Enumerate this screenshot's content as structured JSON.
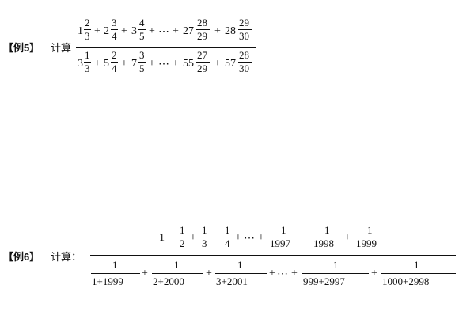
{
  "ex5": {
    "label": "【例5】",
    "calc": "计算",
    "num": {
      "t1w": "1",
      "t1n": "2",
      "t1d": "3",
      "t2w": "2",
      "t2n": "3",
      "t2d": "4",
      "t3w": "3",
      "t3n": "4",
      "t3d": "5",
      "dots": "⋯",
      "t4w": "27",
      "t4n": "28",
      "t4d": "29",
      "t5w": "28",
      "t5n": "29",
      "t5d": "30"
    },
    "den": {
      "t1w": "3",
      "t1n": "1",
      "t1d": "3",
      "t2w": "5",
      "t2n": "2",
      "t2d": "4",
      "t3w": "7",
      "t3n": "3",
      "t3d": "5",
      "dots": "⋯",
      "t4w": "55",
      "t4n": "27",
      "t4d": "29",
      "t5w": "57",
      "t5n": "28",
      "t5d": "30"
    }
  },
  "ex6": {
    "label": "【例6】",
    "calc": "计算：",
    "num": {
      "one": "1",
      "f1n": "1",
      "f1d": "2",
      "f2n": "1",
      "f2d": "3",
      "f3n": "1",
      "f3d": "4",
      "dots": "⋯",
      "f4n": "1",
      "f4d": "1997",
      "f5n": "1",
      "f5d": "1998",
      "f6n": "1",
      "f6d": "1999"
    },
    "den": {
      "f1n": "1",
      "f1d": "1+1999",
      "f2n": "1",
      "f2d": "2+2000",
      "f3n": "1",
      "f3d": "3+2001",
      "dots": "⋯",
      "f4n": "1",
      "f4d": "999+2997",
      "f5n": "1",
      "f5d": "1000+2998"
    }
  }
}
